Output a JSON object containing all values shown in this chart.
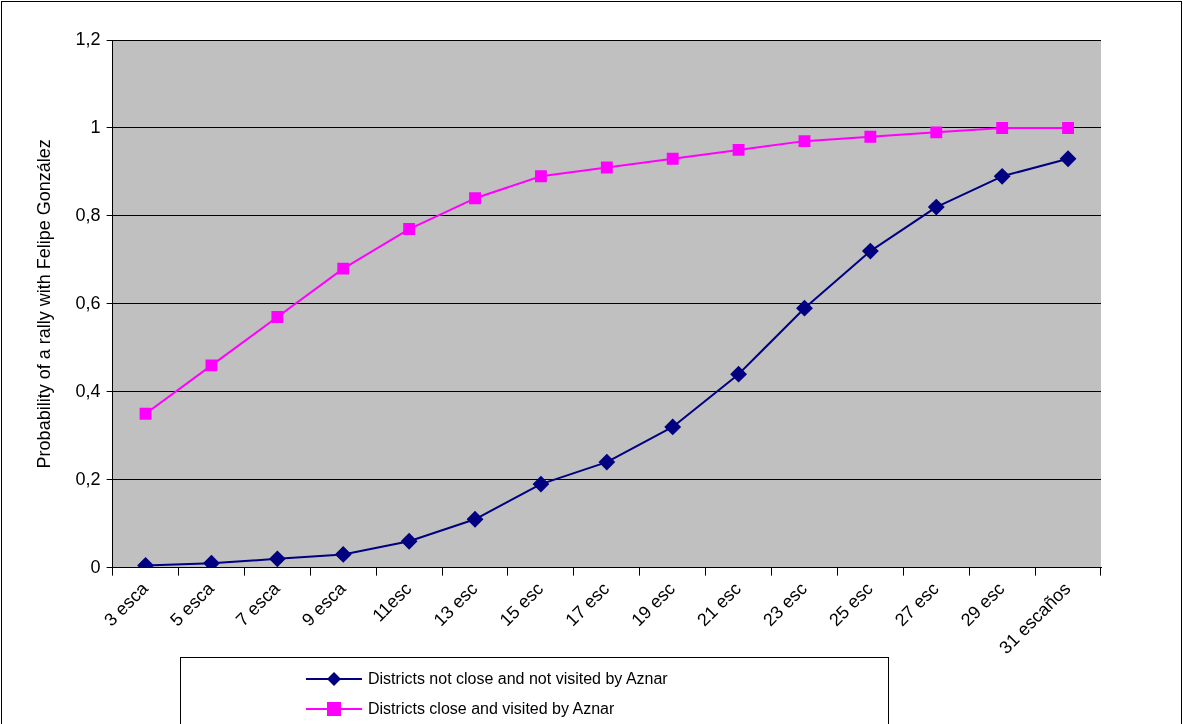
{
  "chart_data": {
    "type": "line",
    "ylabel": "Probability of a rally with Felipe González",
    "categories": [
      "3 esca",
      "5 esca",
      "7 esca",
      "9 esca",
      "11esc",
      "13 esc",
      "15 esc",
      "17 esc",
      "19 esc",
      "21 esc",
      "23 esc",
      "25 esc",
      "27 esc",
      "29 esc",
      "31 escaños"
    ],
    "series": [
      {
        "name": "Districts not close and not visited by Aznar",
        "color": "#000080",
        "marker": "diamond",
        "values": [
          0.005,
          0.01,
          0.02,
          0.03,
          0.06,
          0.11,
          0.19,
          0.24,
          0.32,
          0.44,
          0.59,
          0.72,
          0.82,
          0.89,
          0.93
        ]
      },
      {
        "name": "Districts close and visited by Aznar",
        "color": "#ff00ff",
        "marker": "square",
        "values": [
          0.35,
          0.46,
          0.57,
          0.68,
          0.77,
          0.84,
          0.89,
          0.91,
          0.93,
          0.95,
          0.97,
          0.98,
          0.99,
          1.0,
          1.0
        ]
      }
    ],
    "ylim": [
      0,
      1.2
    ],
    "yticks": [
      0,
      {
        "value": 0.2,
        "label": "0,2"
      },
      {
        "value": 0.4,
        "label": "0,4"
      },
      {
        "value": 0.6,
        "label": "0,6"
      },
      {
        "value": 0.8,
        "label": "0,8"
      },
      1,
      {
        "value": 1.2,
        "label": "1,2"
      }
    ],
    "grid": "y",
    "legend": "bottom",
    "line_style": "solid"
  }
}
